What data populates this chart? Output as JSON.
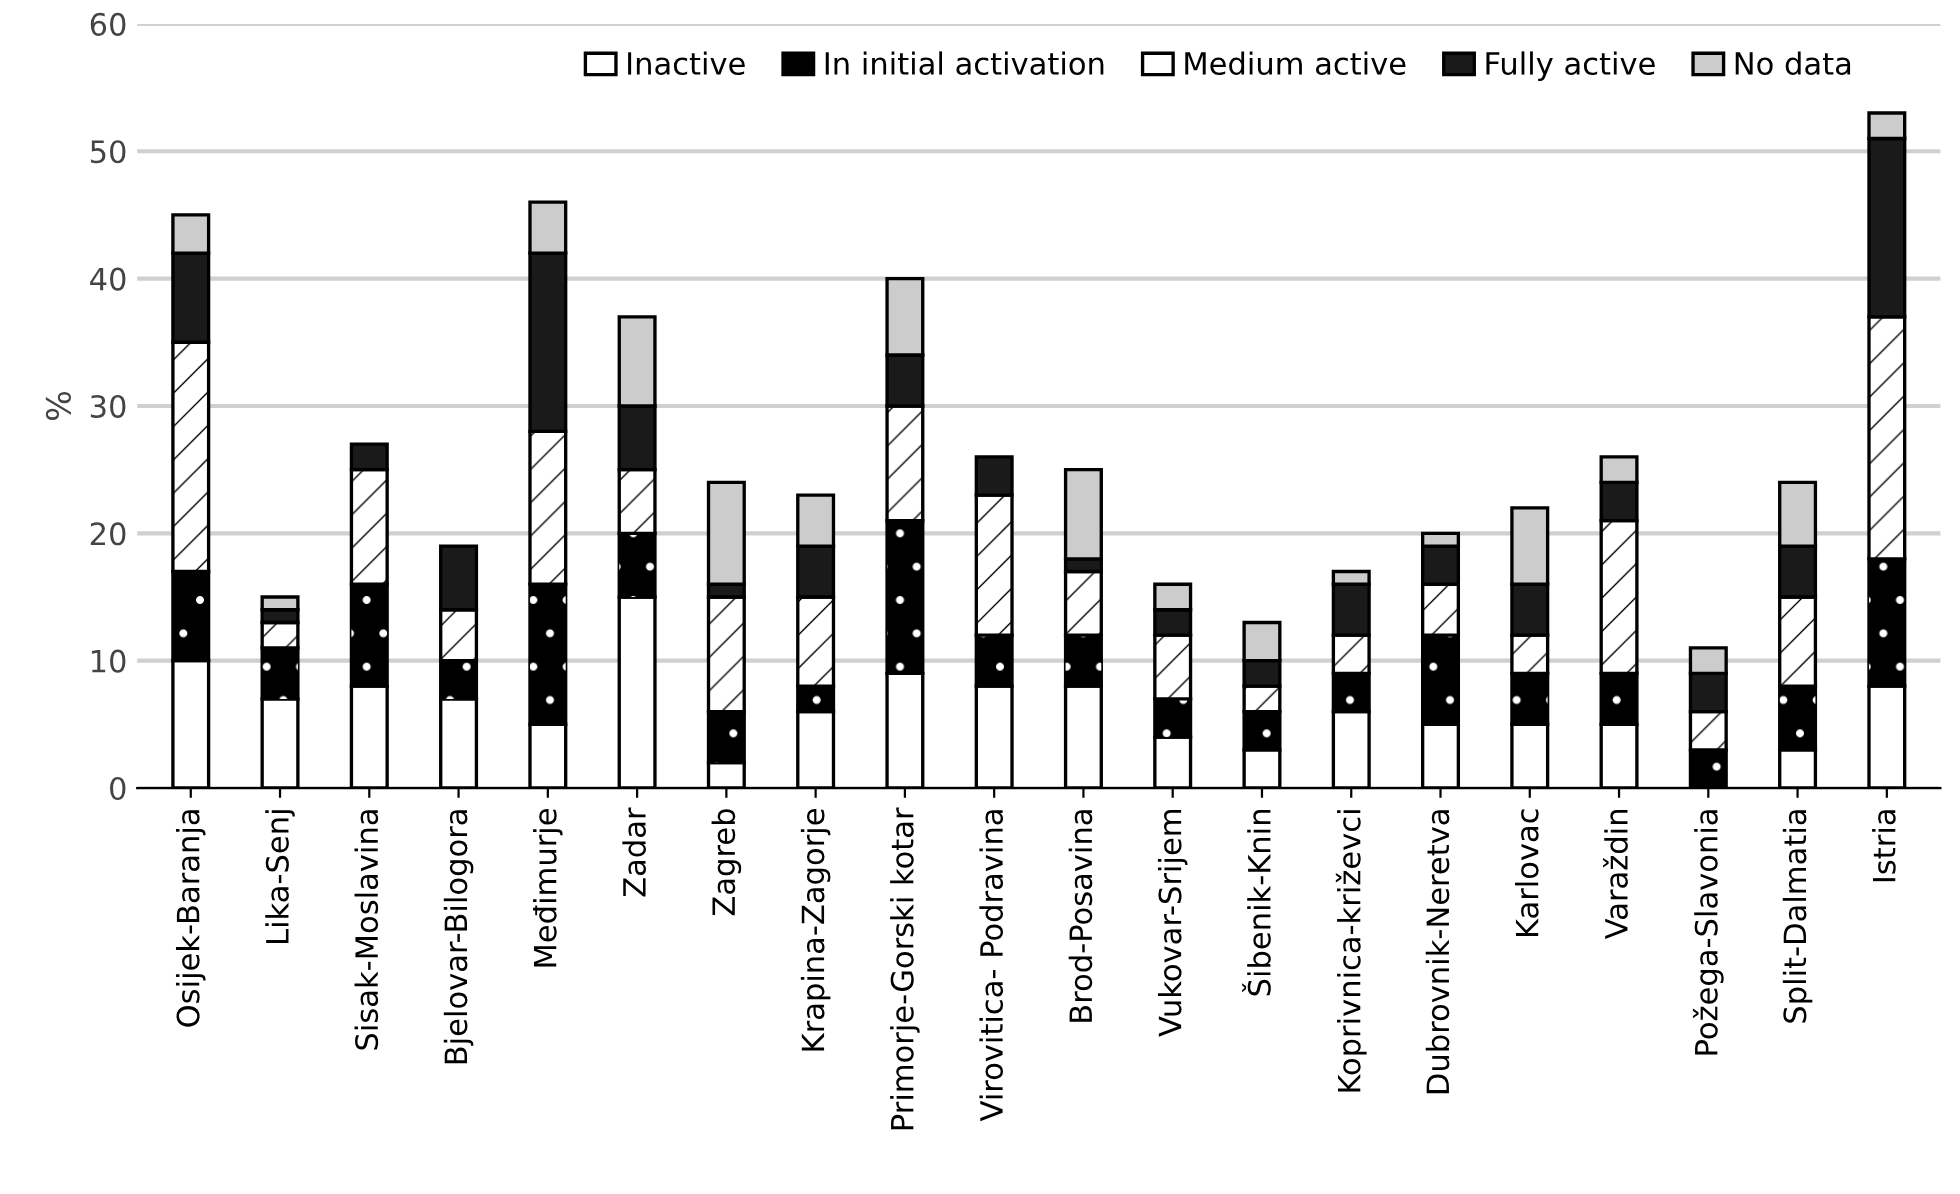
{
  "chart_data": {
    "type": "bar",
    "stacked": true,
    "ylabel": "%",
    "ylim": [
      0,
      60
    ],
    "yticks": [
      0,
      10,
      20,
      30,
      40,
      50,
      60
    ],
    "grid": "y",
    "legend": "top",
    "categories": [
      "Osijek-Baranja",
      "Lika-Senj",
      "Sisak-Moslavina",
      "Bjelovar-Bilogora",
      "Međimurje",
      "Zadar",
      "Zagreb",
      "Krapina-Zagorje",
      "Primorje-Gorski kotar",
      "Virovitica- Podravina",
      "Brod-Posavina",
      "Vukovar-Srijem",
      "Šibenik-Knin",
      "Koprivnica-križevci",
      "Dubrovnik-Neretva",
      "Karlovac",
      "Varaždin",
      "Požega-Slavonia",
      "Split-Dalmatia",
      "Istria"
    ],
    "series": [
      {
        "name": "Inactive",
        "color": "#ffffff",
        "values": [
          10,
          7,
          8,
          7,
          5,
          15,
          2,
          6,
          9,
          8,
          8,
          4,
          3,
          6,
          5,
          5,
          5,
          0,
          3,
          8
        ]
      },
      {
        "name": "In initial activation",
        "color": "#000000",
        "values": [
          7,
          4,
          8,
          3,
          11,
          5,
          4,
          2,
          12,
          4,
          4,
          3,
          3,
          3,
          7,
          4,
          4,
          3,
          5,
          10
        ]
      },
      {
        "name": "Medium active",
        "color": "#ffffff",
        "values": [
          18,
          2,
          9,
          4,
          12,
          5,
          9,
          7,
          9,
          11,
          5,
          5,
          2,
          3,
          4,
          3,
          12,
          3,
          7,
          19
        ]
      },
      {
        "name": "Fully active",
        "color": "#1a1a1a",
        "values": [
          7,
          1,
          2,
          5,
          14,
          5,
          1,
          4,
          4,
          3,
          1,
          2,
          2,
          4,
          3,
          4,
          3,
          3,
          4,
          14
        ]
      },
      {
        "name": "No data",
        "color": "#cccccc",
        "values": [
          3,
          1,
          0,
          0,
          4,
          7,
          8,
          4,
          6,
          0,
          7,
          2,
          3,
          1,
          1,
          6,
          2,
          2,
          5,
          2
        ]
      }
    ]
  }
}
